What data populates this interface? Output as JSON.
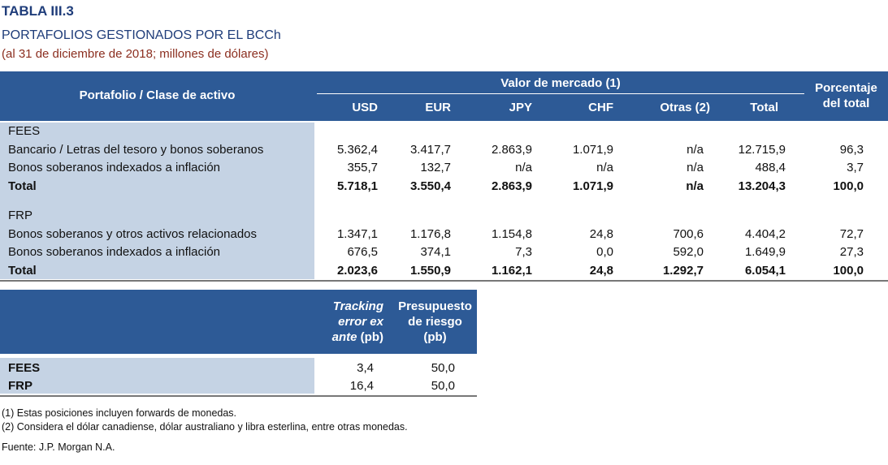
{
  "title": {
    "label": "TABLA III.3",
    "main": "PORTAFOLIOS GESTIONADOS POR EL BCCh",
    "sub": "(al 31 de diciembre de 2018; millones de dólares)"
  },
  "table1": {
    "header": {
      "first_col": "Portafolio / Clase de activo",
      "group": "Valor de mercado (1)",
      "columns": [
        "USD",
        "EUR",
        "JPY",
        "CHF",
        "Otras (2)",
        "Total"
      ],
      "last_col_line1": "Porcentaje",
      "last_col_line2": "del total"
    },
    "sections": [
      {
        "name": "FEES",
        "rows": [
          {
            "label": "Bancario / Letras del tesoro y bonos soberanos",
            "values": [
              "5.362,4",
              "3.417,7",
              "2.863,9",
              "1.071,9",
              "n/a",
              "12.715,9",
              "96,3"
            ]
          },
          {
            "label": "Bonos soberanos indexados a inflación",
            "values": [
              "355,7",
              "132,7",
              "n/a",
              "n/a",
              "n/a",
              "488,4",
              "3,7"
            ]
          },
          {
            "label": "Total",
            "values": [
              "5.718,1",
              "3.550,4",
              "2.863,9",
              "1.071,9",
              "n/a",
              "13.204,3",
              "100,0"
            ]
          }
        ]
      },
      {
        "name": "FRP",
        "rows": [
          {
            "label": "Bonos soberanos y otros activos relacionados",
            "values": [
              "1.347,1",
              "1.176,8",
              "1.154,8",
              "24,8",
              "700,6",
              "4.404,2",
              "72,7"
            ]
          },
          {
            "label": "Bonos soberanos indexados a inflación",
            "values": [
              "676,5",
              "374,1",
              "7,3",
              "0,0",
              "592,0",
              "1.649,9",
              "27,3"
            ]
          },
          {
            "label": "Total",
            "values": [
              "2.023,6",
              "1.550,9",
              "1.162,1",
              "24,8",
              "1.292,7",
              "6.054,1",
              "100,0"
            ]
          }
        ]
      }
    ]
  },
  "table2": {
    "header": {
      "col1_line1": "Tracking",
      "col1_line2": "error ex",
      "col1_line3": "ante",
      "col1_unit": "(pb)",
      "col2_line1": "Presupuesto",
      "col2_line2": "de riesgo",
      "col2_line3": "(pb)"
    },
    "rows": [
      {
        "label": "FEES",
        "values": [
          "3,4",
          "50,0"
        ]
      },
      {
        "label": "FRP",
        "values": [
          "16,4",
          "50,0"
        ]
      }
    ]
  },
  "notes": [
    "(1) Estas posiciones incluyen forwards de monedas.",
    "(2) Considera el dólar canadiense, dólar australiano y libra esterlina, entre otras monedas."
  ],
  "source": "Fuente: J.P. Morgan N.A."
}
